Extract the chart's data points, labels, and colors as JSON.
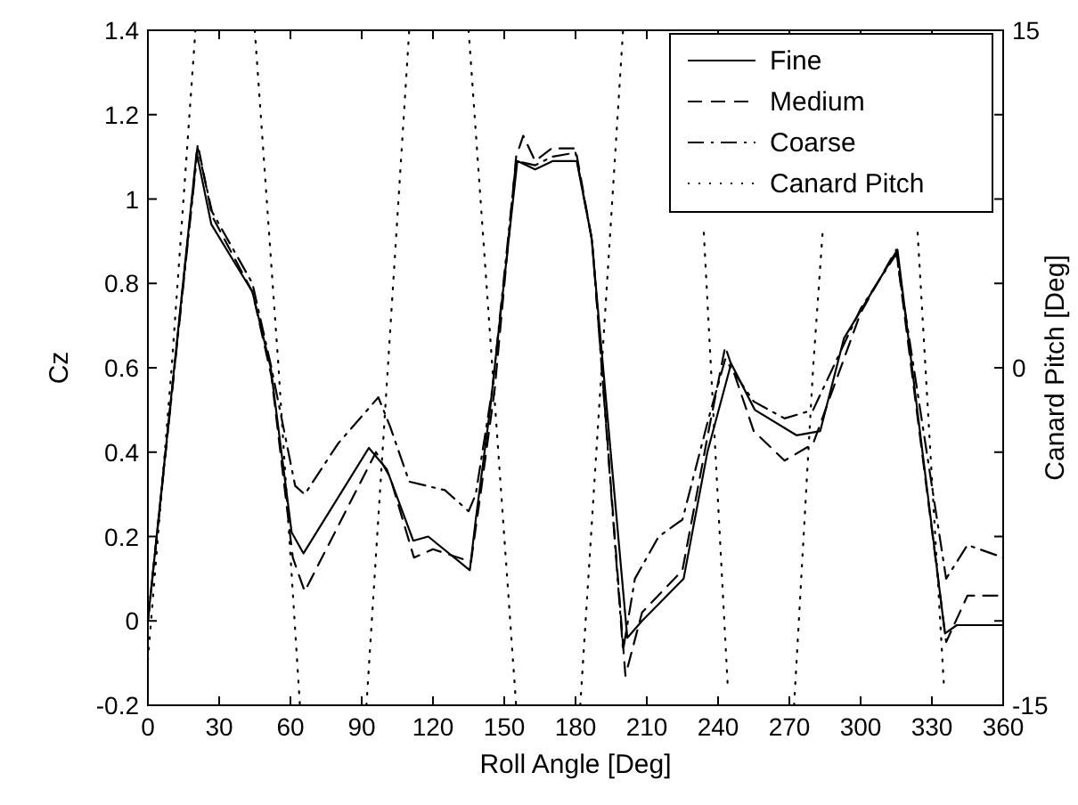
{
  "chart_data": {
    "type": "line",
    "xlabel": "Roll Angle [Deg]",
    "ylabel": "Cz",
    "y2label": "Canard Pitch [Deg]",
    "xlim": [
      0,
      360
    ],
    "xticks": [
      0,
      30,
      60,
      90,
      120,
      150,
      180,
      210,
      240,
      270,
      300,
      330,
      360
    ],
    "ylim": [
      -0.2,
      1.4
    ],
    "yticks": [
      -0.2,
      0,
      0.2,
      0.4,
      0.6,
      0.8,
      1,
      1.2,
      1.4
    ],
    "y2lim": [
      -15,
      15
    ],
    "y2ticks": [
      {
        "value": -15,
        "label": "-15"
      },
      {
        "value": -11.25,
        "label": null
      },
      {
        "value": -7.5,
        "label": null
      },
      {
        "value": -3.75,
        "label": null
      },
      {
        "value": 0,
        "label": "0"
      },
      {
        "value": 3.75,
        "label": null
      },
      {
        "value": 7.5,
        "label": null
      },
      {
        "value": 11.25,
        "label": null
      },
      {
        "value": 15,
        "label": "15"
      }
    ],
    "legend": "top right",
    "grid": false,
    "marker": "none",
    "series": [
      {
        "name": "Fine",
        "color": "#000000",
        "line_style": "solid",
        "x": [
          0,
          20.5,
          26.7,
          44,
          51.7,
          60.5,
          65.5,
          93,
          100.5,
          111.7,
          118,
          135.5,
          138,
          144,
          155.5,
          163,
          170.5,
          180.5,
          186.7,
          201.8,
          208,
          225.5,
          235.5,
          245.5,
          255.5,
          273,
          283,
          293,
          315.5,
          335.5,
          340.5,
          360
        ],
        "values": [
          0,
          1.11,
          0.94,
          0.78,
          0.6,
          0.21,
          0.16,
          0.41,
          0.36,
          0.19,
          0.2,
          0.12,
          0.24,
          0.5,
          1.09,
          1.07,
          1.09,
          1.09,
          0.91,
          -0.04,
          0,
          0.1,
          0.4,
          0.61,
          0.5,
          0.44,
          0.45,
          0.67,
          0.88,
          -0.03,
          -0.01,
          -0.01
        ]
      },
      {
        "name": "Medium",
        "color": "#000000",
        "line_style": "dashed",
        "x": [
          0,
          21,
          27,
          44,
          52,
          61,
          66,
          96,
          102,
          112,
          120,
          136,
          140,
          146,
          155,
          158,
          163,
          170,
          180,
          187,
          201,
          208,
          225,
          236,
          243,
          255,
          268,
          280,
          300,
          315,
          336,
          345,
          360
        ],
        "values": [
          0,
          1.13,
          0.96,
          0.78,
          0.58,
          0.15,
          0.07,
          0.4,
          0.34,
          0.15,
          0.17,
          0.14,
          0.3,
          0.55,
          1.1,
          1.15,
          1.09,
          1.12,
          1.12,
          0.9,
          -0.13,
          0.02,
          0.12,
          0.45,
          0.65,
          0.45,
          0.38,
          0.42,
          0.73,
          0.88,
          -0.05,
          0.06,
          0.06
        ]
      },
      {
        "name": "Coarse",
        "color": "#000000",
        "line_style": "dashdot",
        "x": [
          0,
          21,
          27,
          44,
          52,
          62,
          66,
          80,
          97,
          102,
          110,
          125,
          135,
          138,
          145,
          155,
          163,
          170,
          180,
          187,
          200,
          205,
          215,
          225,
          236,
          243,
          255,
          268,
          280,
          300,
          315,
          336,
          345,
          360
        ],
        "values": [
          0,
          1.12,
          0.97,
          0.8,
          0.6,
          0.32,
          0.3,
          0.42,
          0.53,
          0.46,
          0.33,
          0.31,
          0.26,
          0.3,
          0.55,
          1.09,
          1.08,
          1.1,
          1.11,
          0.9,
          -0.07,
          0.1,
          0.2,
          0.24,
          0.48,
          0.62,
          0.52,
          0.48,
          0.5,
          0.74,
          0.87,
          0.1,
          0.18,
          0.15
        ]
      },
      {
        "name": "Canard Pitch",
        "color": "#000000",
        "line_style": "dotted",
        "axis": "y2",
        "x": [
          0,
          10,
          20,
          32,
          45,
          55,
          64,
          78,
          92,
          101,
          110,
          122,
          135,
          145,
          155,
          168,
          182,
          191,
          200,
          216,
          234,
          244,
          258,
          272,
          280,
          284,
          302,
          324,
          335
        ],
        "values": [
          -13,
          0,
          15,
          null,
          15,
          0,
          -15,
          null,
          -15,
          0,
          15,
          null,
          15,
          0,
          -15,
          null,
          -15,
          0,
          15,
          null,
          6,
          -14,
          null,
          -15,
          0,
          6,
          null,
          6,
          -14
        ]
      }
    ]
  }
}
